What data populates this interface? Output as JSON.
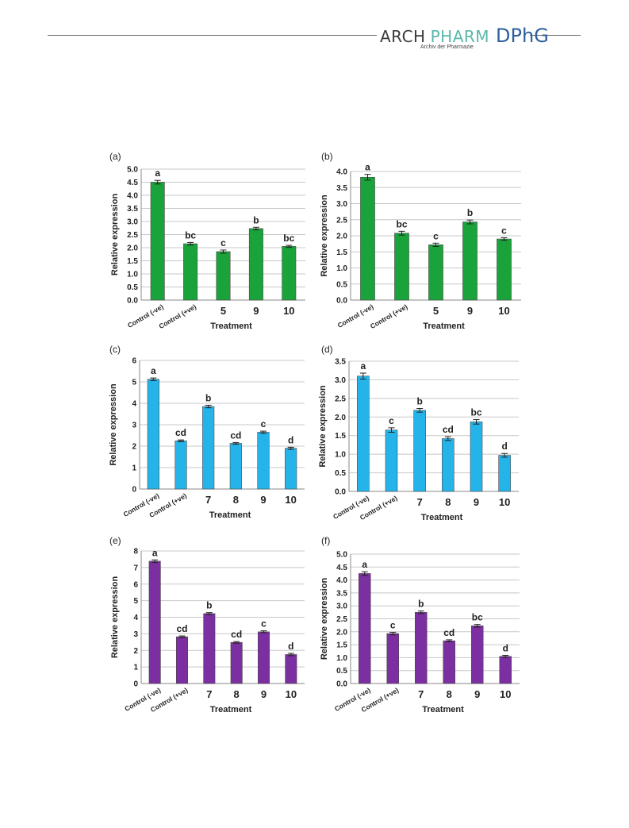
{
  "header": {
    "journal_arch": "ARCH",
    "journal_pharm": "PHARM",
    "journal_sub": "Archiv der Pharmazie",
    "society": "DPhG"
  },
  "chart_data": [
    {
      "type": "bar",
      "panel_label": "(a)",
      "color": "#1aa33a",
      "categories": [
        "Control (-ve)",
        "Control (+ve)",
        "5",
        "9",
        "10"
      ],
      "values": [
        4.5,
        2.15,
        1.85,
        2.73,
        2.05
      ],
      "errors": [
        0.07,
        0.05,
        0.06,
        0.05,
        0.04
      ],
      "letters": [
        "a",
        "bc",
        "c",
        "b",
        "bc"
      ],
      "xlabel": "Treatment",
      "ylabel": "Relative expression",
      "ylim": [
        0,
        5
      ],
      "yticks": [
        "0.0",
        "0.5",
        "1.0",
        "1.5",
        "2.0",
        "2.5",
        "3.0",
        "3.5",
        "4.0",
        "4.5",
        "5.0"
      ],
      "grid": true
    },
    {
      "type": "bar",
      "panel_label": "(b)",
      "color": "#1aa33a",
      "categories": [
        "Control (-ve)",
        "Control (+ve)",
        "5",
        "9",
        "10"
      ],
      "values": [
        3.82,
        2.08,
        1.72,
        2.43,
        1.9
      ],
      "errors": [
        0.09,
        0.06,
        0.05,
        0.06,
        0.04
      ],
      "letters": [
        "a",
        "bc",
        "c",
        "b",
        "c"
      ],
      "xlabel": "Treatment",
      "ylabel": "Relative expression",
      "ylim": [
        0,
        4
      ],
      "yticks": [
        "0.0",
        "0.5",
        "1.0",
        "1.5",
        "2.0",
        "2.5",
        "3.0",
        "3.5",
        "4.0"
      ],
      "grid": true
    },
    {
      "type": "bar",
      "panel_label": "(c)",
      "color": "#25b4ea",
      "categories": [
        "Control (-ve)",
        "Control (+ve)",
        "7",
        "8",
        "9",
        "10"
      ],
      "values": [
        5.12,
        2.25,
        3.85,
        2.13,
        2.65,
        1.9
      ],
      "errors": [
        0.06,
        0.04,
        0.06,
        0.04,
        0.05,
        0.05
      ],
      "letters": [
        "a",
        "cd",
        "b",
        "cd",
        "c",
        "d"
      ],
      "xlabel": "Treatment",
      "ylabel": "Relative expression",
      "ylim": [
        0,
        6
      ],
      "yticks": [
        "0",
        "1",
        "2",
        "3",
        "4",
        "5",
        "6"
      ],
      "grid": true
    },
    {
      "type": "bar",
      "panel_label": "(d)",
      "color": "#25b4ea",
      "categories": [
        "Control (-ve)",
        "Control (+ve)",
        "7",
        "8",
        "9",
        "10"
      ],
      "values": [
        3.1,
        1.65,
        2.18,
        1.42,
        1.87,
        0.97
      ],
      "errors": [
        0.08,
        0.06,
        0.05,
        0.05,
        0.06,
        0.05
      ],
      "letters": [
        "a",
        "c",
        "b",
        "cd",
        "bc",
        "d"
      ],
      "xlabel": "Treatment",
      "ylabel": "Relative expression",
      "ylim": [
        0,
        3.5
      ],
      "yticks": [
        "0.0",
        "0.5",
        "1.0",
        "1.5",
        "2.0",
        "2.5",
        "3.0",
        "3.5"
      ],
      "grid": true
    },
    {
      "type": "bar",
      "panel_label": "(e)",
      "color": "#7b2fa0",
      "categories": [
        "Control (-ve)",
        "Control (+ve)",
        "7",
        "8",
        "9",
        "10"
      ],
      "values": [
        7.38,
        2.82,
        4.22,
        2.48,
        3.12,
        1.75
      ],
      "errors": [
        0.08,
        0.05,
        0.06,
        0.05,
        0.06,
        0.07
      ],
      "letters": [
        "a",
        "cd",
        "b",
        "cd",
        "c",
        "d"
      ],
      "xlabel": "Treatment",
      "ylabel": "Relative expression",
      "ylim": [
        0,
        8
      ],
      "yticks": [
        "0",
        "1",
        "2",
        "3",
        "4",
        "5",
        "6",
        "7",
        "8"
      ],
      "grid": true
    },
    {
      "type": "bar",
      "panel_label": "(f)",
      "color": "#7b2fa0",
      "categories": [
        "Control (-ve)",
        "Control (+ve)",
        "7",
        "8",
        "9",
        "10"
      ],
      "values": [
        4.25,
        1.93,
        2.75,
        1.65,
        2.23,
        1.05
      ],
      "errors": [
        0.07,
        0.05,
        0.05,
        0.04,
        0.05,
        0.04
      ],
      "letters": [
        "a",
        "c",
        "b",
        "cd",
        "bc",
        "d"
      ],
      "xlabel": "Treatment",
      "ylabel": "Relative expression",
      "ylim": [
        0,
        5
      ],
      "yticks": [
        "0.0",
        "0.5",
        "1.0",
        "1.5",
        "2.0",
        "2.5",
        "3.0",
        "3.5",
        "4.0",
        "4.5",
        "5.0"
      ],
      "grid": true
    }
  ]
}
